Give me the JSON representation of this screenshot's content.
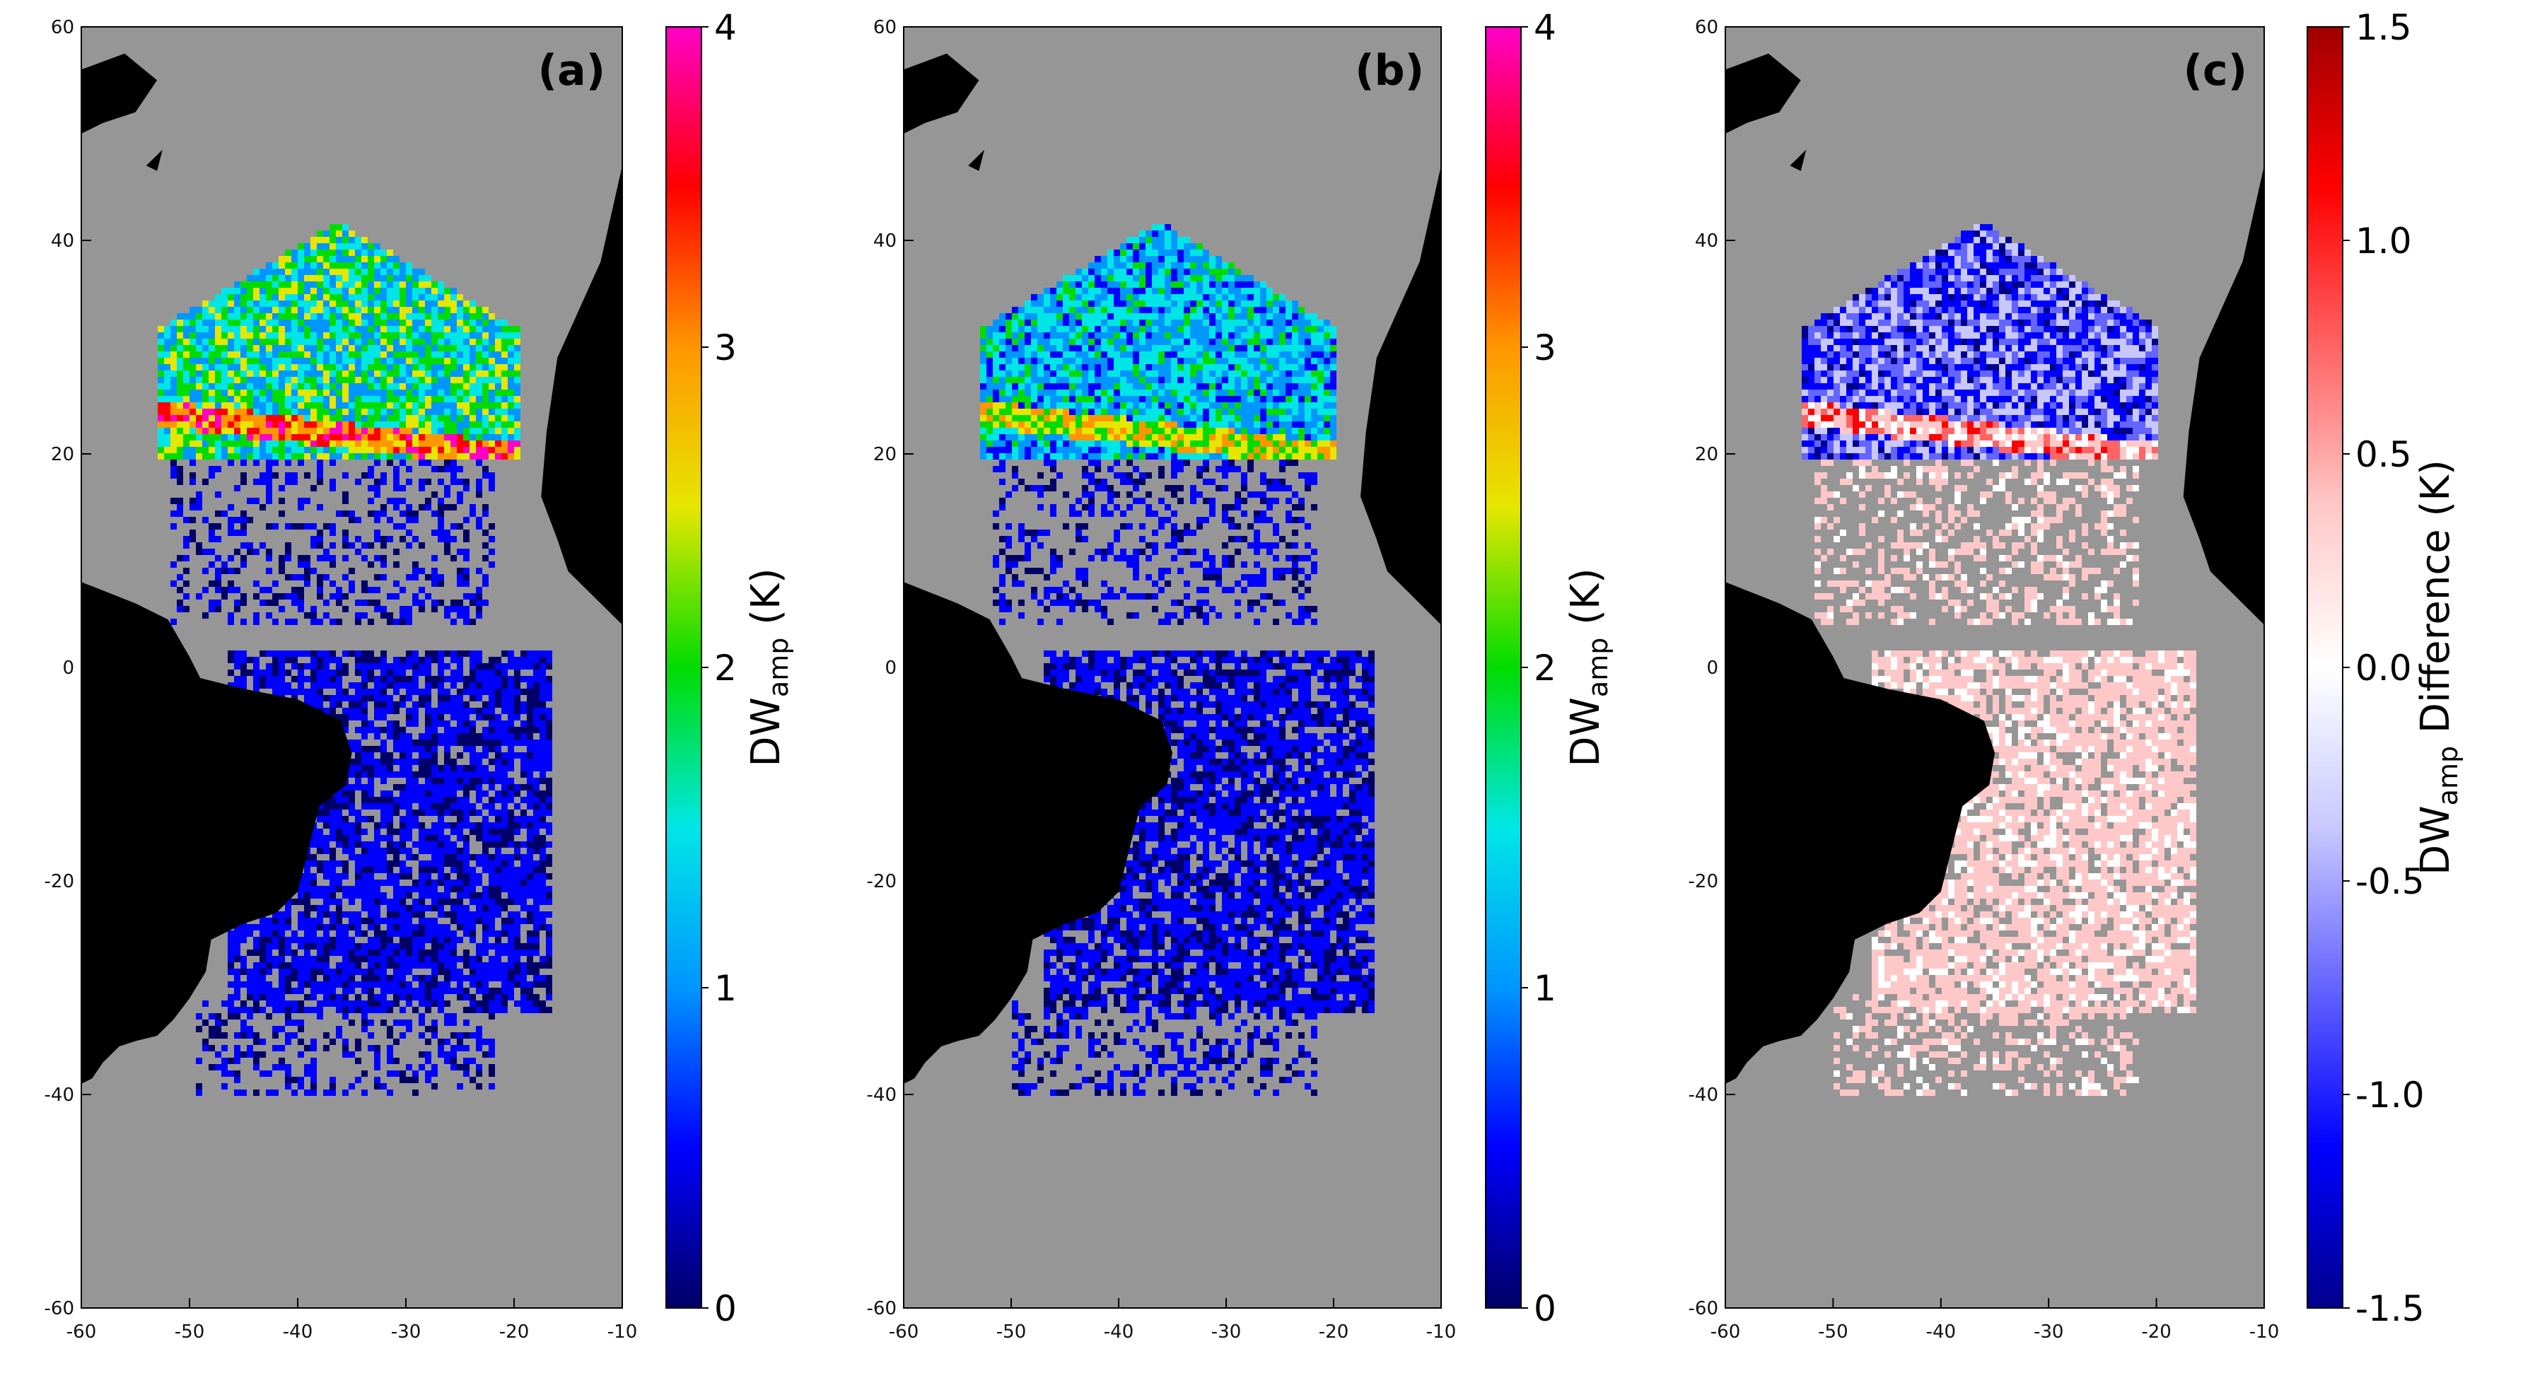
{
  "chart_data": [
    {
      "type": "heatmap",
      "panel_label": "(a)",
      "x": {
        "ticks": [
          -60,
          -50,
          -40,
          -30,
          -20,
          -10
        ],
        "range": [
          -60,
          -10
        ]
      },
      "y": {
        "ticks": [
          60,
          40,
          20,
          0,
          -20,
          -40,
          -60
        ],
        "range": [
          -60,
          60
        ]
      },
      "colorbar": {
        "label_main": "DW",
        "label_sub": "amp",
        "label_unit": " (K)",
        "range": [
          0,
          4
        ],
        "ticks": [
          0,
          1,
          2,
          3,
          4
        ],
        "colors": [
          "#000066",
          "#0000ff",
          "#0096ff",
          "#00e6e6",
          "#00dc00",
          "#e6e600",
          "#ff9600",
          "#ff0000",
          "#ff00c8"
        ]
      },
      "land_color": "#000000",
      "missing_color": "#969696"
    },
    {
      "type": "heatmap",
      "panel_label": "(b)",
      "x": {
        "ticks": [
          -60,
          -50,
          -40,
          -30,
          -20,
          -10
        ],
        "range": [
          -60,
          -10
        ]
      },
      "y": {
        "ticks": [
          60,
          40,
          20,
          0,
          -20,
          -40,
          -60
        ],
        "range": [
          -60,
          60
        ]
      },
      "colorbar": {
        "label_main": "DW",
        "label_sub": "amp",
        "label_unit": " (K)",
        "range": [
          0,
          4
        ],
        "ticks": [
          0,
          1,
          2,
          3,
          4
        ],
        "colors": [
          "#000066",
          "#0000ff",
          "#0096ff",
          "#00e6e6",
          "#00dc00",
          "#e6e600",
          "#ff9600",
          "#ff0000",
          "#ff00c8"
        ]
      },
      "land_color": "#000000",
      "missing_color": "#969696"
    },
    {
      "type": "heatmap",
      "panel_label": "(c)",
      "x": {
        "ticks": [
          -60,
          -50,
          -40,
          -30,
          -20,
          -10
        ],
        "range": [
          -60,
          -10
        ]
      },
      "y": {
        "ticks": [
          60,
          40,
          20,
          0,
          -20,
          -40,
          -60
        ],
        "range": [
          -60,
          60
        ]
      },
      "colorbar": {
        "label_main": "DW",
        "label_sub": "amp",
        "label_unit": " Difference (K)",
        "range": [
          -1.5,
          1.5
        ],
        "ticks": [
          -1.5,
          -1.0,
          -0.5,
          0.0,
          0.5,
          1.0,
          1.5
        ],
        "tick_labels": [
          "-1.5",
          "-1.0",
          "-0.5",
          "0.0",
          "0.5",
          "1.0",
          "1.5"
        ],
        "colors": [
          "#00008c",
          "#0000ff",
          "#6464ff",
          "#c8c8ff",
          "#ffffff",
          "#ffc8c8",
          "#ff6464",
          "#ff0000",
          "#a00000"
        ]
      },
      "land_color": "#000000",
      "missing_color": "#969696"
    }
  ]
}
